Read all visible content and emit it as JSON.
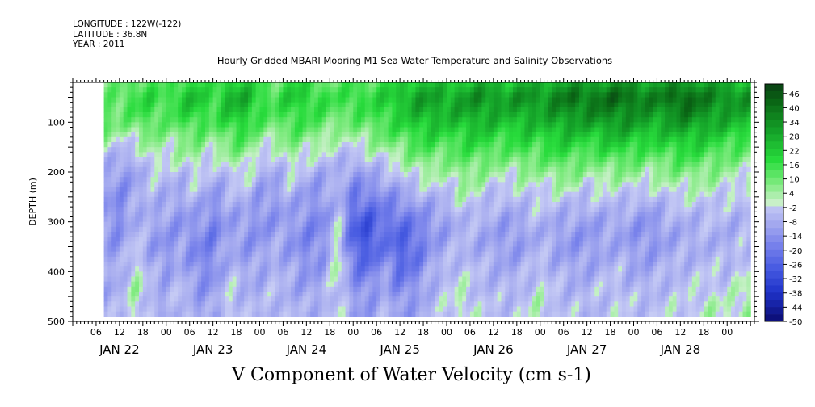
{
  "header": {
    "longitude": "LONGITUDE : 122W(-122)",
    "latitude": "LATITUDE : 36.8N",
    "year": "YEAR : 2011"
  },
  "title": "Hourly Gridded MBARI Mooring M1 Sea Water Temperature and Salinity Observations",
  "bottom_title": "V Component of Water Velocity (cm s-1)",
  "chart_data": {
    "type": "heatmap",
    "title": "Hourly Gridded MBARI Mooring M1 Sea Water Temperature and Salinity Observations",
    "subtitle": "V Component of Water Velocity (cm s-1)",
    "xlabel": "",
    "ylabel": "DEPTH (m)",
    "x_hour_ticks": [
      "06",
      "12",
      "18",
      "00",
      "06",
      "12",
      "18",
      "00",
      "06",
      "12",
      "18",
      "00",
      "06",
      "12",
      "18",
      "00",
      "06",
      "12",
      "18",
      "00",
      "06",
      "12",
      "18",
      "00",
      "06",
      "12",
      "18",
      "00"
    ],
    "x_day_labels": [
      "JAN 22",
      "JAN 23",
      "JAN 24",
      "JAN 25",
      "JAN 26",
      "JAN 27",
      "JAN 28"
    ],
    "x_range_hours": [
      0,
      175
    ],
    "data_x_range_hours": [
      8,
      174
    ],
    "y_ticks": [
      100,
      200,
      300,
      400,
      500
    ],
    "y_range": [
      20,
      500
    ],
    "data_y_range": [
      20,
      490
    ],
    "y_reversed": true,
    "colorbar": {
      "labels": [
        "46",
        "40",
        "34",
        "28",
        "22",
        "16",
        "10",
        "4",
        "-2",
        "-8",
        "-14",
        "-20",
        "-26",
        "-32",
        "-38",
        "-44",
        "-50"
      ],
      "levels": [
        50,
        46,
        44,
        40,
        38,
        34,
        32,
        28,
        26,
        22,
        20,
        16,
        14,
        10,
        8,
        4,
        2,
        -2,
        -4,
        -8,
        -10,
        -14,
        -16,
        -20,
        -22,
        -26,
        -28,
        -32,
        -34,
        -38,
        -40,
        -44,
        -46,
        -50
      ],
      "range": [
        -50,
        50
      ]
    },
    "grid_cells": {
      "columns_times": [
        8,
        12,
        16,
        20,
        24,
        28,
        32,
        36,
        40,
        44,
        48,
        52,
        56,
        60,
        64,
        68,
        72,
        76,
        80,
        84,
        88,
        92,
        96,
        100,
        104,
        108,
        112,
        116,
        120,
        124,
        128,
        132,
        136,
        140,
        144,
        148,
        152,
        156,
        160,
        164,
        168,
        172
      ],
      "depth_rows": [
        20,
        50,
        80,
        110,
        140,
        170,
        200,
        230,
        260,
        290,
        320,
        350,
        380,
        410,
        440,
        470
      ],
      "approx_values": [
        [
          6,
          10,
          14,
          12,
          4,
          -4,
          -8,
          -8,
          -10,
          -12,
          -12,
          -10,
          -8,
          -6,
          -8,
          -8
        ],
        [
          8,
          12,
          10,
          6,
          -2,
          -8,
          -12,
          -14,
          -16,
          -16,
          -14,
          -12,
          -10,
          -8,
          -8,
          -6
        ],
        [
          12,
          16,
          14,
          8,
          0,
          -6,
          -10,
          -10,
          -8,
          -6,
          -4,
          -2,
          0,
          2,
          4,
          2
        ],
        [
          14,
          18,
          16,
          12,
          6,
          2,
          -2,
          -4,
          -6,
          -8,
          -10,
          -10,
          -8,
          -6,
          -4,
          -6
        ],
        [
          10,
          14,
          12,
          8,
          4,
          0,
          -4,
          -6,
          -8,
          -10,
          -12,
          -14,
          -12,
          -10,
          -8,
          -10
        ],
        [
          16,
          22,
          18,
          12,
          6,
          2,
          -4,
          -8,
          -10,
          -12,
          -12,
          -10,
          -8,
          -6,
          -4,
          -2
        ],
        [
          18,
          24,
          20,
          14,
          8,
          4,
          0,
          -2,
          -6,
          -10,
          -14,
          -16,
          -16,
          -14,
          -12,
          -10
        ],
        [
          12,
          16,
          14,
          10,
          4,
          -2,
          -6,
          -10,
          -14,
          -16,
          -18,
          -18,
          -16,
          -14,
          -12,
          -10
        ],
        [
          20,
          26,
          22,
          16,
          10,
          4,
          -2,
          -6,
          -8,
          -10,
          -10,
          -8,
          -6,
          -4,
          -2,
          0
        ],
        [
          22,
          28,
          24,
          18,
          12,
          6,
          2,
          -2,
          -6,
          -10,
          -12,
          -12,
          -10,
          -8,
          -6,
          -6
        ],
        [
          14,
          18,
          16,
          10,
          4,
          -2,
          -6,
          -10,
          -12,
          -14,
          -14,
          -12,
          -10,
          -8,
          -8,
          -6
        ],
        [
          10,
          14,
          12,
          8,
          2,
          -4,
          -8,
          -10,
          -12,
          -12,
          -10,
          -8,
          -6,
          -6,
          -4,
          -4
        ],
        [
          18,
          22,
          18,
          14,
          8,
          4,
          0,
          -4,
          -8,
          -10,
          -12,
          -12,
          -10,
          -8,
          -8,
          -6
        ],
        [
          16,
          20,
          16,
          12,
          6,
          0,
          -6,
          -10,
          -12,
          -14,
          -16,
          -16,
          -14,
          -12,
          -10,
          -8
        ],
        [
          12,
          16,
          14,
          10,
          4,
          -2,
          -8,
          -12,
          -14,
          -16,
          -16,
          -14,
          -12,
          -10,
          -8,
          -6
        ],
        [
          10,
          14,
          12,
          6,
          0,
          -4,
          -6,
          -6,
          -4,
          -2,
          0,
          2,
          4,
          2,
          0,
          -2
        ],
        [
          14,
          18,
          14,
          8,
          2,
          -6,
          -12,
          -16,
          -20,
          -24,
          -26,
          -24,
          -20,
          -16,
          -12,
          -10
        ],
        [
          12,
          16,
          14,
          10,
          4,
          -2,
          -8,
          -14,
          -20,
          -26,
          -30,
          -28,
          -24,
          -18,
          -14,
          -12
        ],
        [
          16,
          20,
          18,
          14,
          8,
          0,
          -6,
          -12,
          -16,
          -20,
          -20,
          -18,
          -14,
          -10,
          -8,
          -6
        ],
        [
          18,
          24,
          20,
          16,
          10,
          4,
          -2,
          -8,
          -14,
          -20,
          -24,
          -26,
          -24,
          -20,
          -16,
          -12
        ],
        [
          22,
          30,
          26,
          20,
          14,
          8,
          2,
          -4,
          -10,
          -16,
          -20,
          -22,
          -20,
          -16,
          -12,
          -10
        ],
        [
          24,
          30,
          28,
          22,
          16,
          10,
          4,
          -2,
          -8,
          -12,
          -14,
          -12,
          -10,
          -8,
          -6,
          -6
        ],
        [
          20,
          28,
          26,
          20,
          14,
          8,
          2,
          -2,
          -6,
          -10,
          -10,
          -8,
          -6,
          -4,
          -2,
          -2
        ],
        [
          22,
          30,
          28,
          22,
          16,
          12,
          8,
          4,
          0,
          -4,
          -6,
          -6,
          -4,
          -2,
          0,
          2
        ],
        [
          26,
          34,
          30,
          24,
          18,
          12,
          6,
          2,
          -2,
          -6,
          -8,
          -8,
          -6,
          -4,
          -4,
          -2
        ],
        [
          24,
          32,
          28,
          22,
          16,
          10,
          4,
          -2,
          -6,
          -8,
          -10,
          -10,
          -8,
          -6,
          -6,
          -4
        ],
        [
          22,
          30,
          26,
          20,
          14,
          8,
          2,
          -2,
          -6,
          -10,
          -12,
          -12,
          -10,
          -8,
          -6,
          -4
        ],
        [
          26,
          34,
          30,
          24,
          18,
          12,
          6,
          0,
          -4,
          -8,
          -10,
          -10,
          -8,
          -6,
          -4,
          -2
        ],
        [
          24,
          32,
          28,
          22,
          16,
          10,
          4,
          0,
          -2,
          -4,
          -6,
          -6,
          -4,
          -2,
          0,
          2
        ],
        [
          28,
          36,
          32,
          26,
          20,
          14,
          8,
          2,
          -4,
          -8,
          -10,
          -10,
          -8,
          -6,
          -4,
          -4
        ],
        [
          30,
          40,
          34,
          28,
          20,
          14,
          8,
          2,
          -4,
          -8,
          -12,
          -12,
          -10,
          -8,
          -6,
          -4
        ],
        [
          28,
          38,
          34,
          26,
          18,
          10,
          4,
          -2,
          -6,
          -10,
          -12,
          -12,
          -10,
          -8,
          -6,
          -6
        ],
        [
          30,
          40,
          36,
          28,
          20,
          12,
          6,
          0,
          -4,
          -8,
          -10,
          -10,
          -8,
          -6,
          -4,
          -4
        ],
        [
          32,
          42,
          36,
          30,
          22,
          14,
          6,
          0,
          -4,
          -8,
          -10,
          -8,
          -6,
          -4,
          -2,
          -2
        ],
        [
          30,
          40,
          34,
          28,
          20,
          12,
          6,
          0,
          -6,
          -10,
          -12,
          -12,
          -10,
          -8,
          -6,
          -4
        ],
        [
          28,
          36,
          32,
          26,
          18,
          10,
          4,
          -2,
          -8,
          -12,
          -14,
          -12,
          -10,
          -8,
          -6,
          -4
        ],
        [
          30,
          38,
          32,
          26,
          18,
          12,
          6,
          0,
          -4,
          -8,
          -10,
          -10,
          -8,
          -6,
          -4,
          -2
        ],
        [
          32,
          44,
          38,
          30,
          22,
          14,
          8,
          2,
          -2,
          -6,
          -8,
          -8,
          -6,
          -4,
          -4,
          -2
        ],
        [
          30,
          40,
          36,
          28,
          20,
          14,
          8,
          2,
          -2,
          -6,
          -8,
          -8,
          -6,
          -4,
          -2,
          0
        ],
        [
          28,
          36,
          32,
          26,
          18,
          12,
          6,
          2,
          -2,
          -4,
          -6,
          -6,
          -4,
          -2,
          0,
          2
        ],
        [
          26,
          34,
          30,
          24,
          16,
          10,
          4,
          0,
          -4,
          -6,
          -8,
          -8,
          -6,
          -4,
          -2,
          0
        ],
        [
          24,
          32,
          28,
          22,
          14,
          8,
          2,
          -2,
          -4,
          -6,
          -6,
          -4,
          -2,
          0,
          2,
          4
        ]
      ]
    },
    "grid": false
  }
}
